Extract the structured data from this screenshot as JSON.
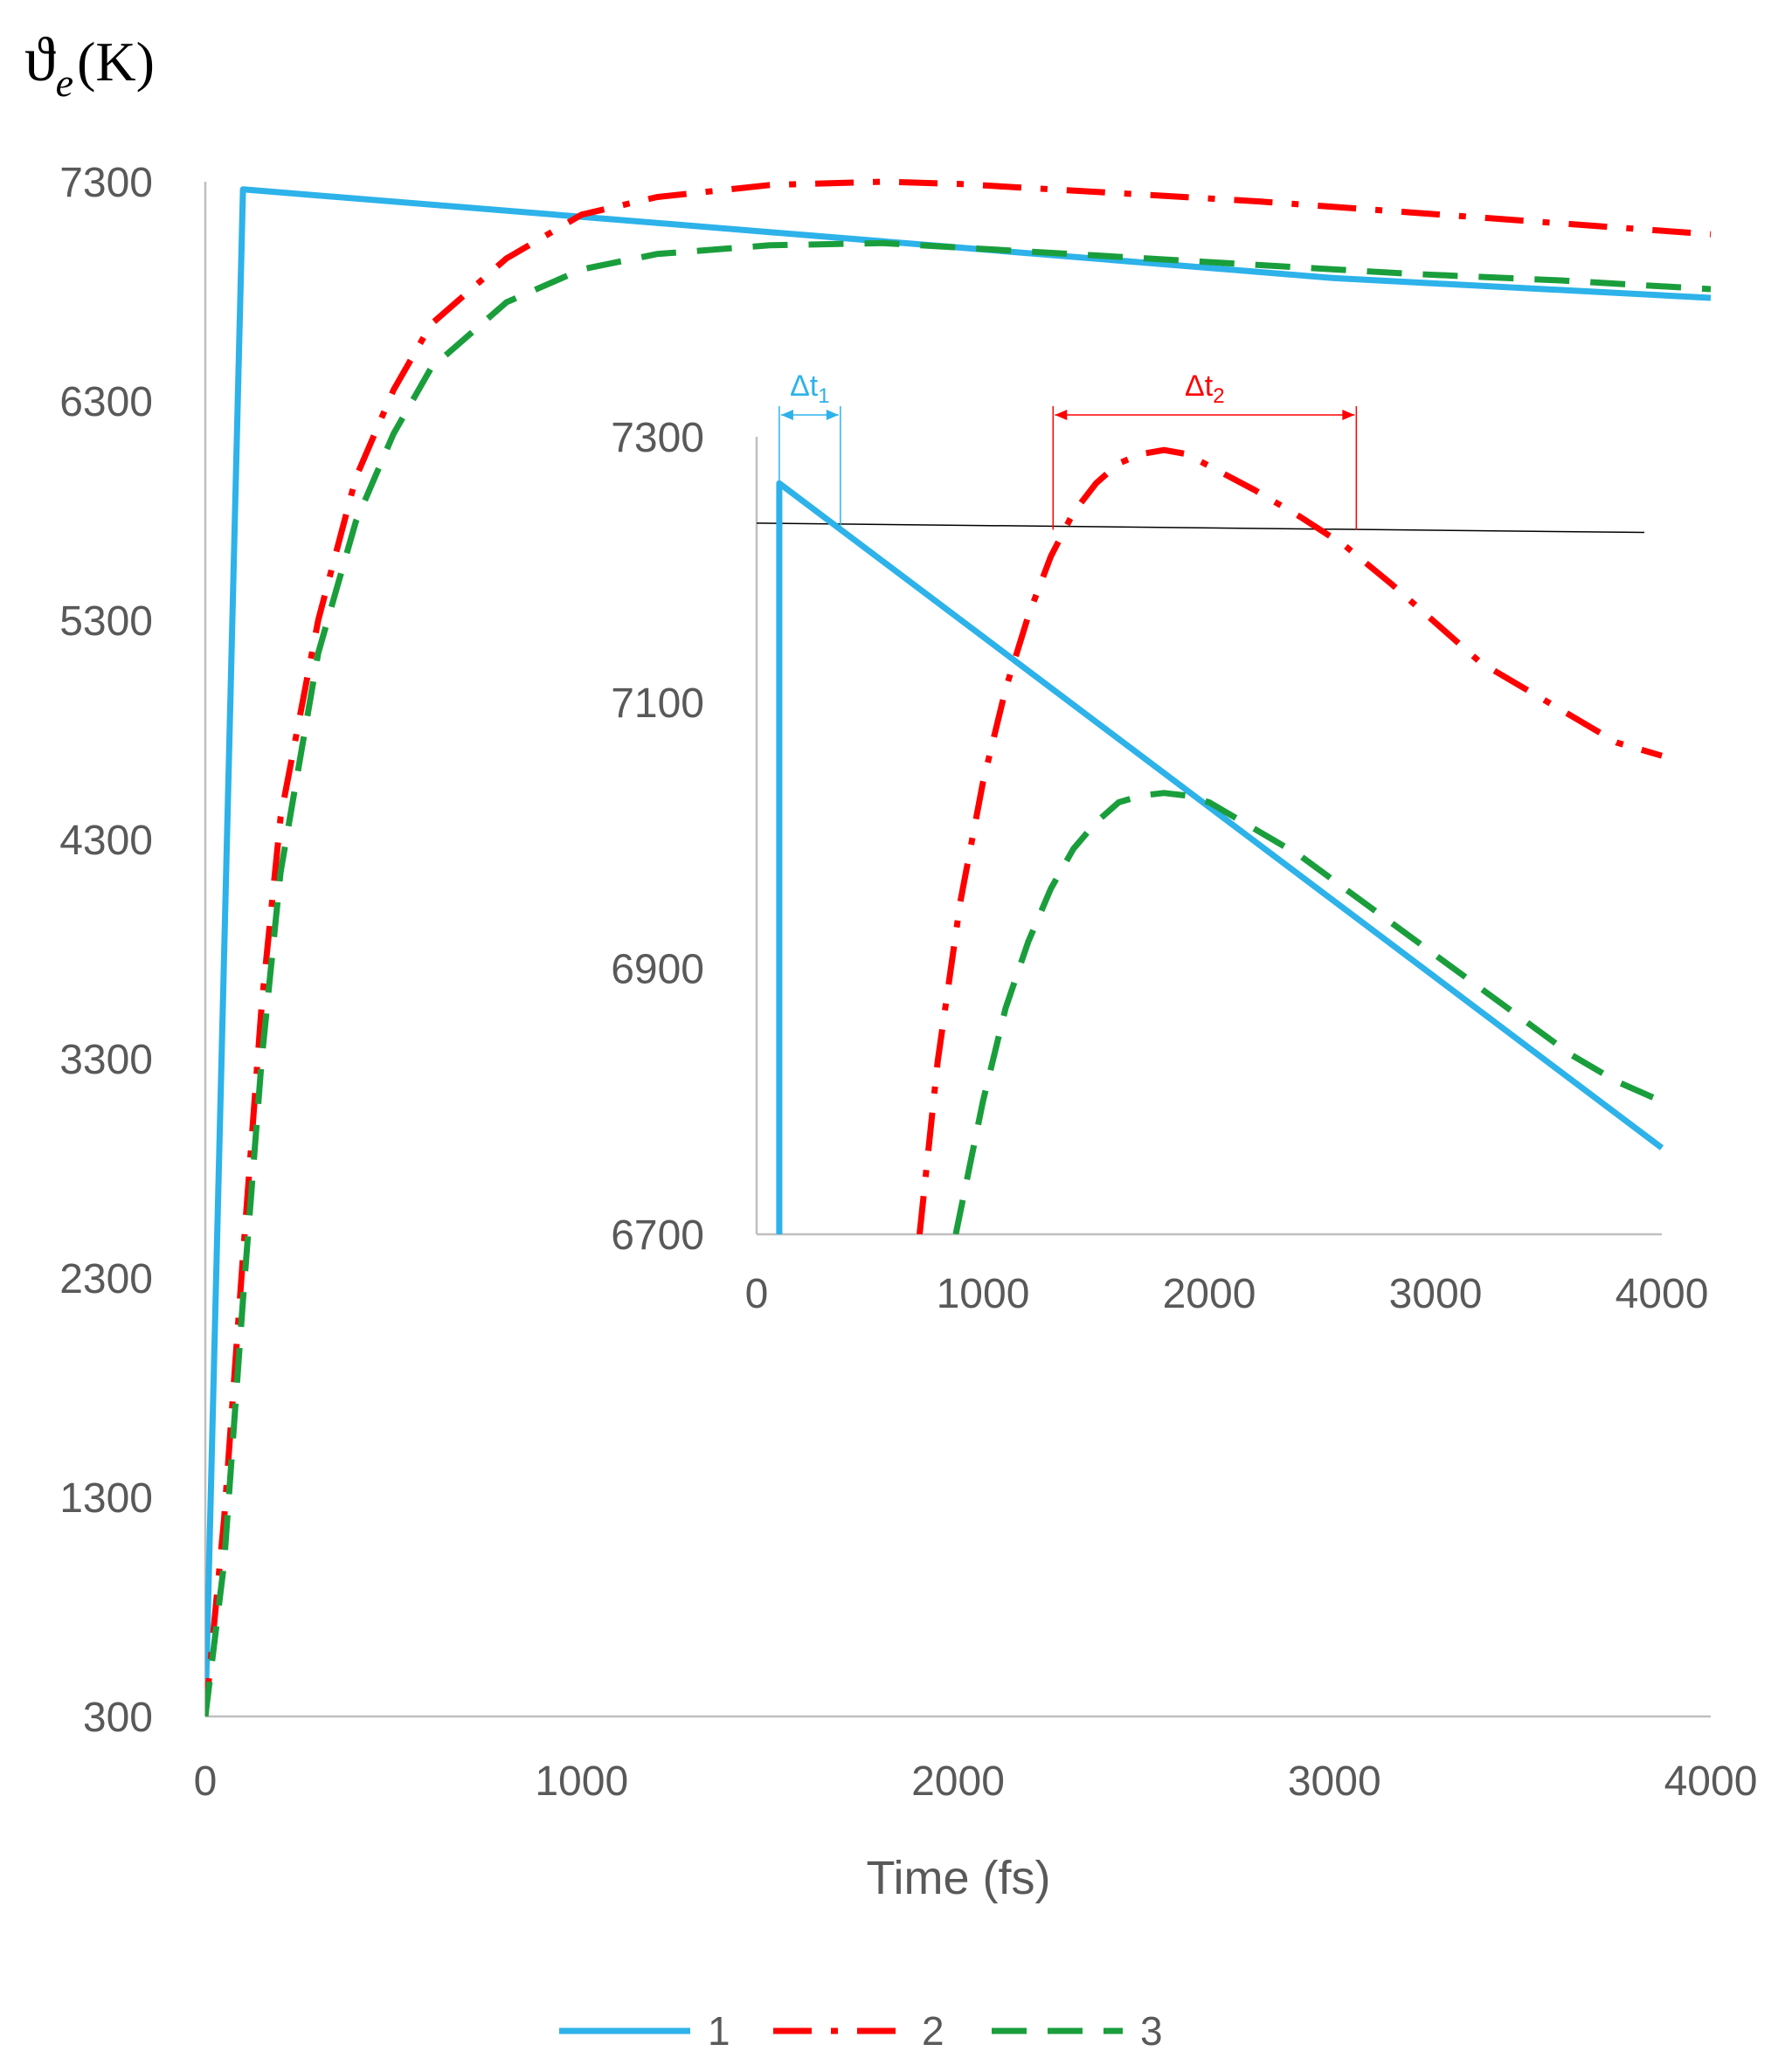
{
  "colors": {
    "series1": "#2db2ea",
    "series2": "#ff0000",
    "series3": "#1a9e3c",
    "axis": "#bfbfbf",
    "tick_text": "#595959",
    "reference_line": "#000000"
  },
  "chart_data": [
    {
      "type": "line",
      "ylabel": {
        "symbol": "ϑ",
        "subscript": "e",
        "unit": "(K)"
      },
      "xlabel": "Time (fs)",
      "xlim": [
        0,
        4000
      ],
      "ylim": [
        300,
        7300
      ],
      "x_ticks": [
        "0",
        "1000",
        "2000",
        "3000",
        "4000"
      ],
      "y_ticks": [
        "300",
        "1300",
        "2300",
        "3300",
        "4300",
        "5300",
        "6300",
        "7300"
      ],
      "legend_position": "bottom",
      "series": [
        {
          "name": "1",
          "style": "solid",
          "x": [
            0,
            100,
            1000,
            2000,
            3000,
            4000
          ],
          "y": [
            300,
            7265,
            7140,
            7000,
            6860,
            6770
          ]
        },
        {
          "name": "2",
          "style": "dash-dot",
          "x": [
            0,
            50,
            100,
            150,
            200,
            300,
            400,
            500,
            600,
            800,
            1000,
            1200,
            1500,
            1800,
            2000,
            2400,
            2800,
            3200,
            3600,
            4000
          ],
          "y": [
            300,
            1200,
            2400,
            3550,
            4400,
            5300,
            5950,
            6350,
            6650,
            6950,
            7150,
            7230,
            7285,
            7300,
            7290,
            7250,
            7210,
            7160,
            7110,
            7060
          ]
        },
        {
          "name": "3",
          "style": "dashed",
          "x": [
            0,
            50,
            100,
            150,
            200,
            300,
            400,
            500,
            600,
            800,
            1000,
            1200,
            1500,
            1800,
            2000,
            2400,
            2800,
            3200,
            3600,
            4000
          ],
          "y": [
            300,
            1000,
            2200,
            3300,
            4150,
            5150,
            5750,
            6150,
            6450,
            6750,
            6900,
            6970,
            7010,
            7020,
            7000,
            6960,
            6920,
            6880,
            6850,
            6810
          ]
        }
      ]
    },
    {
      "type": "line",
      "xlim": [
        0,
        4000
      ],
      "ylim": [
        6700,
        7300
      ],
      "x_ticks": [
        "0",
        "1000",
        "2000",
        "3000",
        "4000"
      ],
      "y_ticks": [
        "6700",
        "6900",
        "7100",
        "7300"
      ],
      "reference_line": {
        "x": [
          0,
          4000
        ],
        "y": [
          7235,
          7228
        ]
      },
      "annotations": [
        {
          "label": "Δt",
          "subscript": "1",
          "color": "#2db2ea",
          "x_range": [
            100,
            370
          ]
        },
        {
          "label": "Δt",
          "subscript": "2",
          "color": "#ff0000",
          "x_range": [
            1310,
            2650
          ]
        }
      ],
      "series": [
        {
          "name": "1",
          "style": "solid",
          "x": [
            100,
            100,
            4000
          ],
          "y": [
            6700,
            7265,
            6765
          ]
        },
        {
          "name": "2",
          "style": "dash-dot",
          "x": [
            720,
            800,
            900,
            1000,
            1100,
            1200,
            1300,
            1400,
            1500,
            1600,
            1700,
            1800,
            1900,
            2000,
            2200,
            2400,
            2600,
            2800,
            3000,
            3200,
            3400,
            3600,
            3800,
            4000
          ],
          "y": [
            6700,
            6830,
            6950,
            7040,
            7110,
            7165,
            7210,
            7243,
            7265,
            7280,
            7287,
            7290,
            7287,
            7278,
            7260,
            7240,
            7218,
            7190,
            7160,
            7130,
            7110,
            7090,
            7070,
            7060
          ]
        },
        {
          "name": "3",
          "style": "dashed",
          "x": [
            880,
            1000,
            1100,
            1200,
            1300,
            1400,
            1500,
            1600,
            1700,
            1800,
            1900,
            2000,
            2200,
            2400,
            2600,
            2800,
            3000,
            3200,
            3400,
            3600,
            3800,
            4000
          ],
          "y": [
            6700,
            6800,
            6870,
            6920,
            6960,
            6990,
            7010,
            7025,
            7030,
            7032,
            7030,
            7025,
            7005,
            6985,
            6960,
            6935,
            6910,
            6885,
            6860,
            6835,
            6815,
            6800
          ]
        }
      ]
    }
  ]
}
